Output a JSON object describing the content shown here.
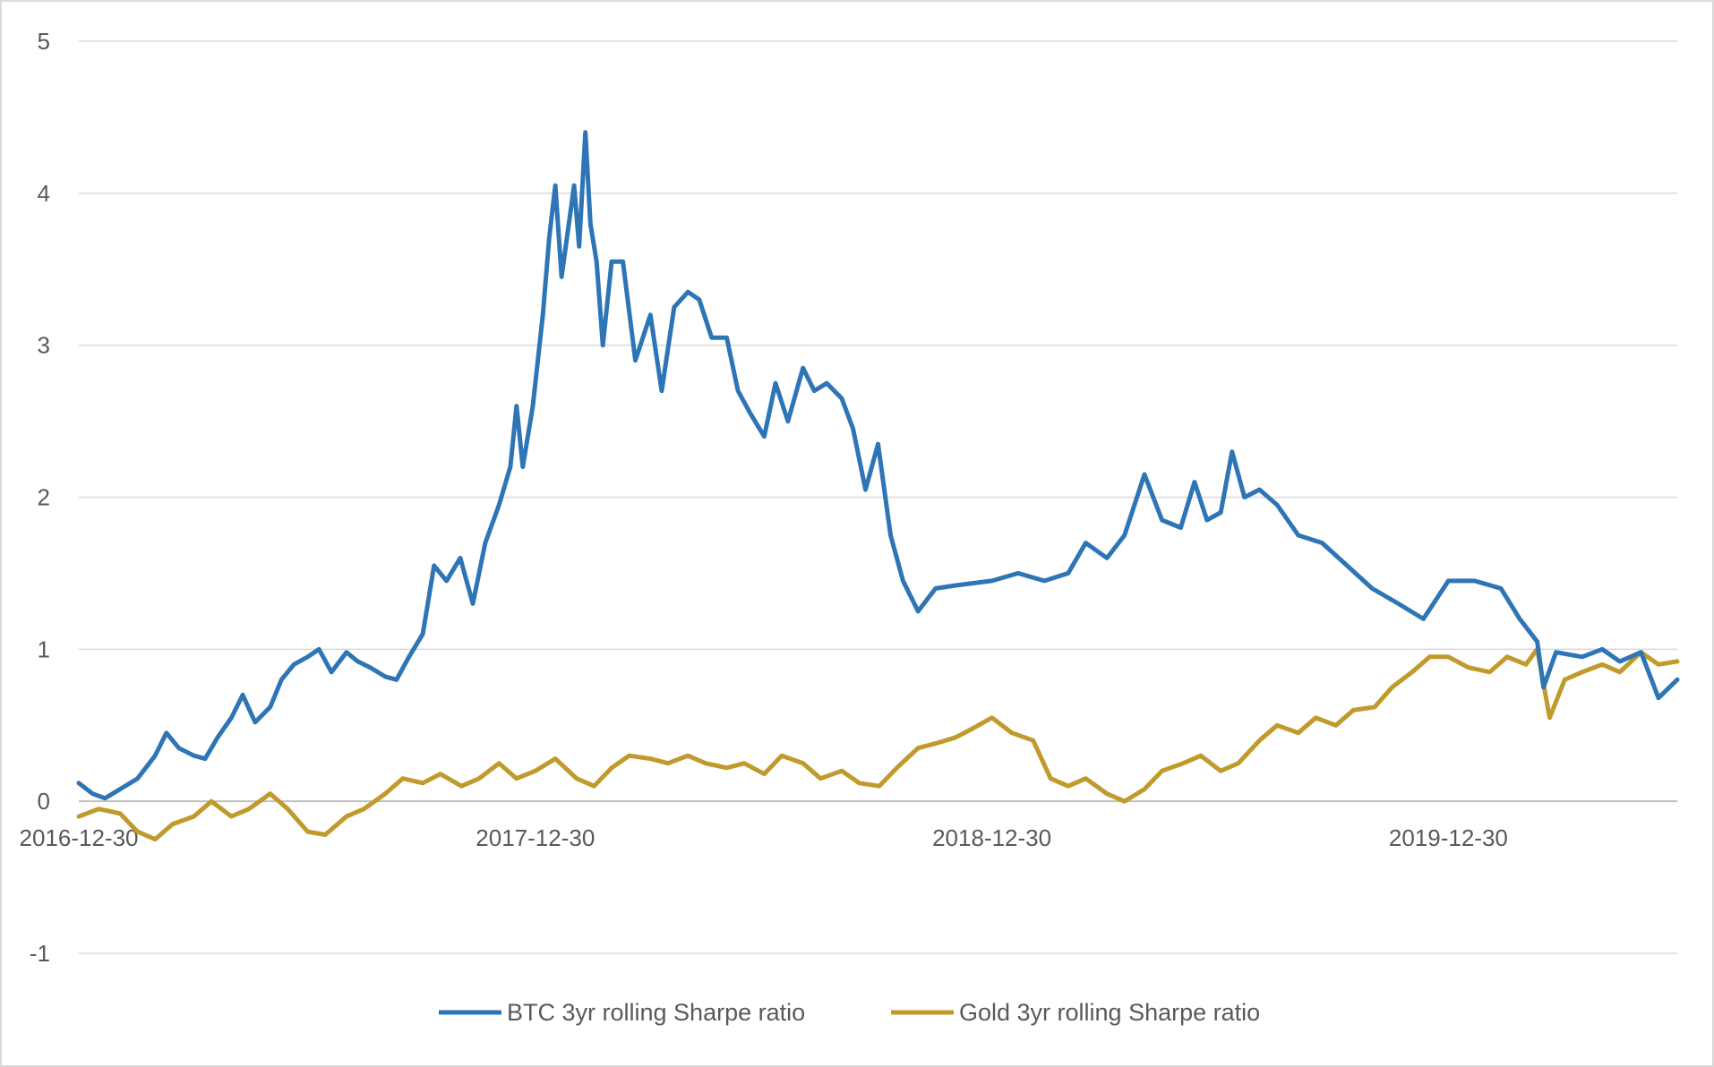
{
  "chart_data": {
    "type": "line",
    "title": "",
    "xlabel": "",
    "ylabel": "",
    "x_range": [
      "2016-12-30",
      "2020-06-30"
    ],
    "ylim": [
      -1,
      5
    ],
    "y_ticks": [
      "5",
      "4",
      "3",
      "2",
      "1",
      "0",
      "-1"
    ],
    "x_tick_labels": [
      "2016-12-30",
      "2017-12-30",
      "2018-12-30",
      "2019-12-30"
    ],
    "grid": "horizontal",
    "legend_position": "bottom",
    "series": [
      {
        "name": "BTC 3yr rolling Sharpe ratio",
        "color": "#2e75b6",
        "points": [
          [
            "2016-12-30",
            0.12
          ],
          [
            "2017-01-10",
            0.05
          ],
          [
            "2017-01-20",
            0.02
          ],
          [
            "2017-02-01",
            0.08
          ],
          [
            "2017-02-15",
            0.15
          ],
          [
            "2017-03-01",
            0.3
          ],
          [
            "2017-03-10",
            0.45
          ],
          [
            "2017-03-20",
            0.35
          ],
          [
            "2017-04-01",
            0.3
          ],
          [
            "2017-04-10",
            0.28
          ],
          [
            "2017-04-20",
            0.42
          ],
          [
            "2017-05-01",
            0.55
          ],
          [
            "2017-05-10",
            0.7
          ],
          [
            "2017-05-20",
            0.52
          ],
          [
            "2017-06-01",
            0.62
          ],
          [
            "2017-06-10",
            0.8
          ],
          [
            "2017-06-20",
            0.9
          ],
          [
            "2017-07-01",
            0.95
          ],
          [
            "2017-07-10",
            1.0
          ],
          [
            "2017-07-20",
            0.85
          ],
          [
            "2017-08-01",
            0.98
          ],
          [
            "2017-08-10",
            0.92
          ],
          [
            "2017-08-20",
            0.88
          ],
          [
            "2017-09-01",
            0.82
          ],
          [
            "2017-09-10",
            0.8
          ],
          [
            "2017-09-20",
            0.95
          ],
          [
            "2017-10-01",
            1.1
          ],
          [
            "2017-10-10",
            1.55
          ],
          [
            "2017-10-20",
            1.45
          ],
          [
            "2017-10-31",
            1.6
          ],
          [
            "2017-11-10",
            1.3
          ],
          [
            "2017-11-20",
            1.7
          ],
          [
            "2017-12-01",
            1.95
          ],
          [
            "2017-12-10",
            2.2
          ],
          [
            "2017-12-15",
            2.6
          ],
          [
            "2017-12-20",
            2.2
          ],
          [
            "2017-12-28",
            2.6
          ],
          [
            "2018-01-05",
            3.2
          ],
          [
            "2018-01-10",
            3.7
          ],
          [
            "2018-01-15",
            4.05
          ],
          [
            "2018-01-20",
            3.45
          ],
          [
            "2018-01-25",
            3.75
          ],
          [
            "2018-01-30",
            4.05
          ],
          [
            "2018-02-03",
            3.65
          ],
          [
            "2018-02-08",
            4.4
          ],
          [
            "2018-02-12",
            3.8
          ],
          [
            "2018-02-17",
            3.55
          ],
          [
            "2018-02-22",
            3.0
          ],
          [
            "2018-03-01",
            3.55
          ],
          [
            "2018-03-10",
            3.55
          ],
          [
            "2018-03-20",
            2.9
          ],
          [
            "2018-04-01",
            3.2
          ],
          [
            "2018-04-10",
            2.7
          ],
          [
            "2018-04-20",
            3.25
          ],
          [
            "2018-05-01",
            3.35
          ],
          [
            "2018-05-10",
            3.3
          ],
          [
            "2018-05-20",
            3.05
          ],
          [
            "2018-06-01",
            3.05
          ],
          [
            "2018-06-10",
            2.7
          ],
          [
            "2018-06-20",
            2.55
          ],
          [
            "2018-07-01",
            2.4
          ],
          [
            "2018-07-10",
            2.75
          ],
          [
            "2018-07-20",
            2.5
          ],
          [
            "2018-08-01",
            2.85
          ],
          [
            "2018-08-10",
            2.7
          ],
          [
            "2018-08-20",
            2.75
          ],
          [
            "2018-09-01",
            2.65
          ],
          [
            "2018-09-10",
            2.45
          ],
          [
            "2018-09-20",
            2.05
          ],
          [
            "2018-09-30",
            2.35
          ],
          [
            "2018-10-10",
            1.75
          ],
          [
            "2018-10-20",
            1.45
          ],
          [
            "2018-11-01",
            1.25
          ],
          [
            "2018-11-15",
            1.4
          ],
          [
            "2018-12-01",
            1.42
          ],
          [
            "2018-12-30",
            1.45
          ],
          [
            "2019-01-20",
            1.5
          ],
          [
            "2019-02-10",
            1.45
          ],
          [
            "2019-03-01",
            1.5
          ],
          [
            "2019-03-15",
            1.7
          ],
          [
            "2019-04-01",
            1.6
          ],
          [
            "2019-04-15",
            1.75
          ],
          [
            "2019-05-01",
            2.15
          ],
          [
            "2019-05-15",
            1.85
          ],
          [
            "2019-05-30",
            1.8
          ],
          [
            "2019-06-10",
            2.1
          ],
          [
            "2019-06-20",
            1.85
          ],
          [
            "2019-07-01",
            1.9
          ],
          [
            "2019-07-10",
            2.3
          ],
          [
            "2019-07-20",
            2.0
          ],
          [
            "2019-08-01",
            2.05
          ],
          [
            "2019-08-15",
            1.95
          ],
          [
            "2019-09-01",
            1.75
          ],
          [
            "2019-09-20",
            1.7
          ],
          [
            "2019-10-10",
            1.55
          ],
          [
            "2019-10-30",
            1.4
          ],
          [
            "2019-11-20",
            1.3
          ],
          [
            "2019-12-10",
            1.2
          ],
          [
            "2019-12-30",
            1.45
          ],
          [
            "2020-01-20",
            1.45
          ],
          [
            "2020-02-10",
            1.4
          ],
          [
            "2020-02-25",
            1.2
          ],
          [
            "2020-03-10",
            1.05
          ],
          [
            "2020-03-15",
            0.75
          ],
          [
            "2020-03-25",
            0.98
          ],
          [
            "2020-04-15",
            0.95
          ],
          [
            "2020-05-01",
            1.0
          ],
          [
            "2020-05-15",
            0.92
          ],
          [
            "2020-06-01",
            0.98
          ],
          [
            "2020-06-15",
            0.68
          ],
          [
            "2020-06-30",
            0.8
          ]
        ]
      },
      {
        "name": "Gold 3yr rolling Sharpe ratio",
        "color": "#c09a2b",
        "points": [
          [
            "2016-12-30",
            -0.1
          ],
          [
            "2017-01-15",
            -0.05
          ],
          [
            "2017-02-01",
            -0.08
          ],
          [
            "2017-02-15",
            -0.2
          ],
          [
            "2017-03-01",
            -0.25
          ],
          [
            "2017-03-15",
            -0.15
          ],
          [
            "2017-04-01",
            -0.1
          ],
          [
            "2017-04-15",
            0.0
          ],
          [
            "2017-05-01",
            -0.1
          ],
          [
            "2017-05-15",
            -0.05
          ],
          [
            "2017-06-01",
            0.05
          ],
          [
            "2017-06-15",
            -0.05
          ],
          [
            "2017-07-01",
            -0.2
          ],
          [
            "2017-07-15",
            -0.22
          ],
          [
            "2017-08-01",
            -0.1
          ],
          [
            "2017-08-15",
            -0.05
          ],
          [
            "2017-09-01",
            0.05
          ],
          [
            "2017-09-15",
            0.15
          ],
          [
            "2017-10-01",
            0.12
          ],
          [
            "2017-10-15",
            0.18
          ],
          [
            "2017-11-01",
            0.1
          ],
          [
            "2017-11-15",
            0.15
          ],
          [
            "2017-12-01",
            0.25
          ],
          [
            "2017-12-15",
            0.15
          ],
          [
            "2017-12-30",
            0.2
          ],
          [
            "2018-01-15",
            0.28
          ],
          [
            "2018-02-01",
            0.15
          ],
          [
            "2018-02-15",
            0.1
          ],
          [
            "2018-03-01",
            0.22
          ],
          [
            "2018-03-15",
            0.3
          ],
          [
            "2018-04-01",
            0.28
          ],
          [
            "2018-04-15",
            0.25
          ],
          [
            "2018-05-01",
            0.3
          ],
          [
            "2018-05-15",
            0.25
          ],
          [
            "2018-06-01",
            0.22
          ],
          [
            "2018-06-15",
            0.25
          ],
          [
            "2018-07-01",
            0.18
          ],
          [
            "2018-07-15",
            0.3
          ],
          [
            "2018-08-01",
            0.25
          ],
          [
            "2018-08-15",
            0.15
          ],
          [
            "2018-09-01",
            0.2
          ],
          [
            "2018-09-15",
            0.12
          ],
          [
            "2018-10-01",
            0.1
          ],
          [
            "2018-10-15",
            0.22
          ],
          [
            "2018-11-01",
            0.35
          ],
          [
            "2018-11-15",
            0.38
          ],
          [
            "2018-12-01",
            0.42
          ],
          [
            "2018-12-15",
            0.48
          ],
          [
            "2018-12-30",
            0.55
          ],
          [
            "2019-01-15",
            0.45
          ],
          [
            "2019-02-01",
            0.4
          ],
          [
            "2019-02-15",
            0.15
          ],
          [
            "2019-03-01",
            0.1
          ],
          [
            "2019-03-15",
            0.15
          ],
          [
            "2019-04-01",
            0.05
          ],
          [
            "2019-04-15",
            0.0
          ],
          [
            "2019-05-01",
            0.08
          ],
          [
            "2019-05-15",
            0.2
          ],
          [
            "2019-06-01",
            0.25
          ],
          [
            "2019-06-15",
            0.3
          ],
          [
            "2019-07-01",
            0.2
          ],
          [
            "2019-07-15",
            0.25
          ],
          [
            "2019-08-01",
            0.4
          ],
          [
            "2019-08-15",
            0.5
          ],
          [
            "2019-09-01",
            0.45
          ],
          [
            "2019-09-15",
            0.55
          ],
          [
            "2019-10-01",
            0.5
          ],
          [
            "2019-10-15",
            0.6
          ],
          [
            "2019-11-01",
            0.62
          ],
          [
            "2019-11-15",
            0.75
          ],
          [
            "2019-12-01",
            0.85
          ],
          [
            "2019-12-15",
            0.95
          ],
          [
            "2019-12-30",
            0.95
          ],
          [
            "2020-01-15",
            0.88
          ],
          [
            "2020-02-01",
            0.85
          ],
          [
            "2020-02-15",
            0.95
          ],
          [
            "2020-03-01",
            0.9
          ],
          [
            "2020-03-10",
            1.0
          ],
          [
            "2020-03-20",
            0.55
          ],
          [
            "2020-04-01",
            0.8
          ],
          [
            "2020-04-15",
            0.85
          ],
          [
            "2020-05-01",
            0.9
          ],
          [
            "2020-05-15",
            0.85
          ],
          [
            "2020-06-01",
            0.98
          ],
          [
            "2020-06-15",
            0.9
          ],
          [
            "2020-06-30",
            0.92
          ]
        ]
      }
    ]
  }
}
